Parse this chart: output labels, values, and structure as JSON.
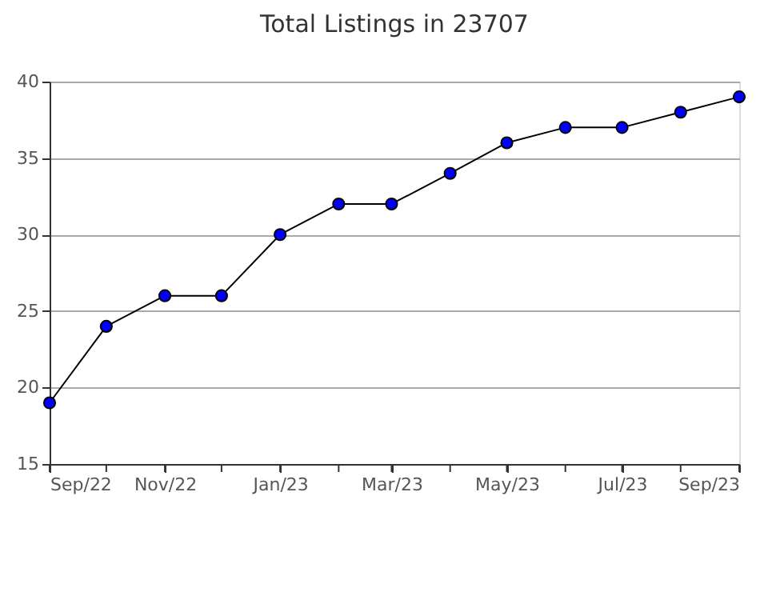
{
  "chart_data": {
    "type": "line",
    "title": "Total Listings in 23707",
    "x": [
      "2022-09",
      "2022-10",
      "2022-11",
      "2022-12",
      "2023-01",
      "2023-02",
      "2023-03",
      "2023-04",
      "2023-05",
      "2023-06",
      "2023-07",
      "2023-08",
      "2023-09"
    ],
    "series": [
      {
        "color": "#0000ff",
        "values": [
          19,
          24,
          26,
          26,
          30,
          32,
          32,
          34,
          36,
          37,
          37,
          38,
          39
        ]
      }
    ],
    "xlim": [
      "2022-09",
      "2023-09"
    ],
    "xticks": [
      {
        "value": "2022-09",
        "label": "Sep/22"
      },
      {
        "value": "2022-10",
        "label": null
      },
      {
        "value": "2022-11",
        "label": "Nov/22"
      },
      {
        "value": "2022-12",
        "label": null
      },
      {
        "value": "2023-01",
        "label": "Jan/23"
      },
      {
        "value": "2023-02",
        "label": null
      },
      {
        "value": "2023-03",
        "label": "Mar/23"
      },
      {
        "value": "2023-04",
        "label": null
      },
      {
        "value": "2023-05",
        "label": "May/23"
      },
      {
        "value": "2023-06",
        "label": null
      },
      {
        "value": "2023-07",
        "label": "Jul/23"
      },
      {
        "value": "2023-08",
        "label": null
      },
      {
        "value": "2023-09",
        "label": "Sep/23"
      }
    ],
    "ylim": [
      15,
      40
    ],
    "yticks": [
      15,
      20,
      25,
      30,
      35,
      40
    ],
    "grid": "y",
    "marker": "circle",
    "line_style": "solid"
  }
}
